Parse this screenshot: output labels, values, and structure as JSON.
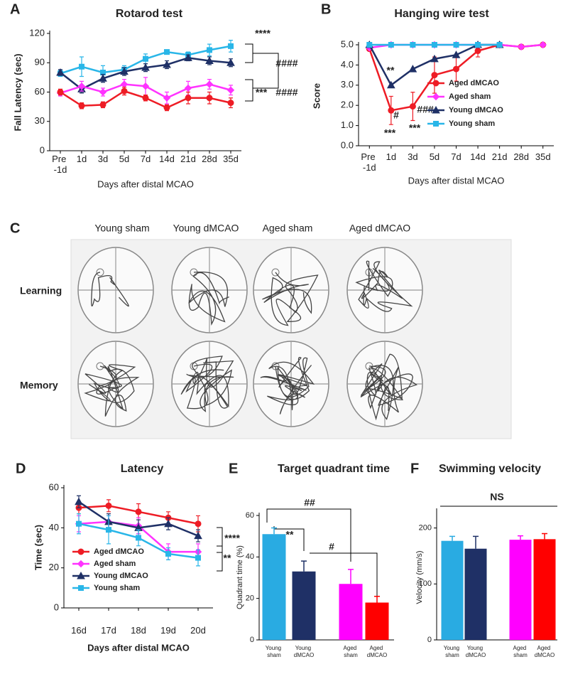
{
  "chart_data": [
    {
      "type": "line",
      "panel": "A",
      "title": "Rotarod test",
      "ylabel": "Fall Latency (sec)",
      "xlabel": "Days after distal MCAO",
      "categories": [
        "Pre -1d",
        "1d",
        "3d",
        "5d",
        "7d",
        "14d",
        "21d",
        "28d",
        "35d"
      ],
      "ylim": [
        0,
        120
      ],
      "yticks": [
        0,
        30,
        60,
        90,
        120
      ],
      "series": [
        {
          "color": "#29b6e8",
          "marker": "square",
          "values": [
            79,
            86,
            80,
            83,
            94,
            101,
            98,
            103,
            107
          ],
          "errors": [
            3,
            10,
            7,
            4,
            5,
            2,
            3,
            6,
            6
          ]
        },
        {
          "color": "#1f3066",
          "marker": "triangle",
          "values": [
            80,
            63,
            74,
            81,
            85,
            88,
            95,
            92,
            90
          ],
          "errors": [
            3,
            4,
            4,
            4,
            4,
            4,
            3,
            4,
            4
          ]
        },
        {
          "color": "#ff33ff",
          "marker": "diamond",
          "values": [
            59,
            66,
            60,
            68,
            66,
            54,
            64,
            68,
            62
          ],
          "errors": [
            3,
            5,
            4,
            5,
            9,
            6,
            7,
            5,
            5
          ]
        },
        {
          "color": "#ee1c25",
          "marker": "circle",
          "values": [
            60,
            46,
            47,
            61,
            54,
            44,
            54,
            54,
            49
          ],
          "errors": [
            3,
            3,
            3,
            4,
            3,
            3,
            6,
            6,
            5
          ]
        }
      ],
      "annotations": [
        {
          "text": "****",
          "color": "#000000"
        },
        {
          "text": "####",
          "color": "#000000"
        },
        {
          "text": "***",
          "color": "#000000"
        },
        {
          "text": "####",
          "color": "#000000"
        }
      ]
    },
    {
      "type": "line",
      "panel": "B",
      "title": "Hanging wire test",
      "ylabel": "Score",
      "xlabel": "Days after distal MCAO",
      "categories": [
        "Pre -1d",
        "1d",
        "3d",
        "5d",
        "7d",
        "14d",
        "21d",
        "28d",
        "35d"
      ],
      "ylim": [
        0,
        5
      ],
      "yticks": [
        {
          "value": 0,
          "label": "0.0"
        },
        {
          "value": 1,
          "label": "1.0"
        },
        {
          "value": 2,
          "label": "2.0"
        },
        {
          "value": 3,
          "label": "3.0"
        },
        {
          "value": 4,
          "label": "4.0"
        },
        {
          "value": 5,
          "label": "5.0"
        }
      ],
      "series": [
        {
          "name": "Aged dMCAO",
          "color": "#ee1c25",
          "marker": "circle",
          "values": [
            4.8,
            1.75,
            1.95,
            3.5,
            3.8,
            4.7,
            5.0,
            4.9,
            5.0
          ],
          "errors": [
            0,
            0.7,
            0.7,
            0.9,
            0.6,
            0.3,
            0,
            0,
            0
          ]
        },
        {
          "name": "Aged sham",
          "color": "#ff33ff",
          "marker": "diamond",
          "values": [
            4.85,
            5.0,
            5.0,
            5.0,
            5.0,
            5.0,
            5.0,
            4.9,
            5.0
          ],
          "errors": [
            0,
            0,
            0,
            0,
            0,
            0,
            0,
            0,
            0
          ]
        },
        {
          "name": "Young dMCAO",
          "color": "#1f3066",
          "marker": "triangle",
          "values": [
            5.0,
            3.0,
            3.8,
            4.3,
            4.5,
            5.0,
            5.0,
            null,
            null
          ],
          "errors": [
            0,
            0,
            0,
            0,
            0,
            0,
            0,
            null,
            null
          ]
        },
        {
          "name": "Young sham",
          "color": "#29b6e8",
          "marker": "square",
          "values": [
            5.0,
            5.0,
            5.0,
            5.0,
            5.0,
            5.0,
            5.0,
            null,
            null
          ],
          "errors": [
            0,
            0,
            0,
            0,
            0,
            0,
            0,
            null,
            null
          ]
        }
      ],
      "annotations": [
        {
          "text": "**",
          "color": "#2e8bc8"
        },
        {
          "text": "***",
          "color": "#ee1c25"
        },
        {
          "text": "#",
          "color": "#000000"
        },
        {
          "text": "***",
          "color": "#ee1c25"
        },
        {
          "text": "###",
          "color": "#000000"
        }
      ]
    },
    {
      "type": "line",
      "panel": "D",
      "title": "Latency",
      "ylabel": "Time (sec)",
      "xlabel": "Days after distal MCAO",
      "categories": [
        "16d",
        "17d",
        "18d",
        "19d",
        "20d"
      ],
      "ylim": [
        0,
        60
      ],
      "yticks": [
        0,
        20,
        40,
        60
      ],
      "series": [
        {
          "name": "Aged dMCAO",
          "color": "#ee1c25",
          "marker": "circle",
          "values": [
            50,
            51,
            48,
            45,
            42
          ],
          "errors": [
            3,
            3,
            4,
            3,
            4
          ]
        },
        {
          "name": "Aged sham",
          "color": "#ff33ff",
          "marker": "diamond",
          "values": [
            42,
            43,
            41,
            28,
            28
          ],
          "errors": [
            4,
            3,
            4,
            4,
            4
          ]
        },
        {
          "name": "Young dMCAO",
          "color": "#1f3066",
          "marker": "triangle",
          "values": [
            53,
            43,
            40,
            42,
            36
          ],
          "errors": [
            3,
            4,
            4,
            3,
            3
          ]
        },
        {
          "name": "Young sham",
          "color": "#29b6e8",
          "marker": "square",
          "values": [
            42,
            39,
            35,
            27,
            25
          ],
          "errors": [
            5,
            7,
            4,
            3,
            4
          ]
        }
      ],
      "annotations": [
        {
          "text": "****",
          "color": "#000000"
        },
        {
          "text": "**",
          "color": "#000000"
        }
      ]
    },
    {
      "type": "bar",
      "panel": "E",
      "title": "Target quadrant time",
      "ylabel": "Quadrant time (%)",
      "categories": [
        "Young sham",
        "Young dMCAO",
        "Aged sham",
        "Aged dMCAO"
      ],
      "values": [
        51,
        33,
        27,
        18
      ],
      "errors": [
        3,
        5,
        7,
        3
      ],
      "colors": [
        "#29abe2",
        "#1f3066",
        "#ff00ff",
        "#ff0000"
      ],
      "ylim": [
        0,
        60
      ],
      "yticks": [
        0,
        20,
        40,
        60
      ],
      "annotations": [
        {
          "text": "**",
          "color": "#000000"
        },
        {
          "text": "##",
          "color": "#000000"
        },
        {
          "text": "#",
          "color": "#000000"
        }
      ]
    },
    {
      "type": "bar",
      "panel": "F",
      "title": "Swimming velocity",
      "ylabel": "Velocity (mm/s)",
      "categories": [
        "Young sham",
        "Young dMCAO",
        "Aged sham",
        "Aged dMCAO"
      ],
      "values": [
        177,
        163,
        179,
        180
      ],
      "errors": [
        8,
        22,
        7,
        10
      ],
      "colors": [
        "#29abe2",
        "#1f3066",
        "#ff00ff",
        "#ff0000"
      ],
      "ylim": [
        0,
        230
      ],
      "yticks": [
        0,
        100,
        200
      ],
      "annotations": [
        {
          "text": "NS",
          "color": "#000000"
        }
      ]
    }
  ],
  "figure_c": {
    "panel": "C",
    "columns": [
      "Young sham",
      "Young dMCAO",
      "Aged sham",
      "Aged dMCAO"
    ],
    "rows": [
      "Learning",
      "Memory"
    ]
  }
}
